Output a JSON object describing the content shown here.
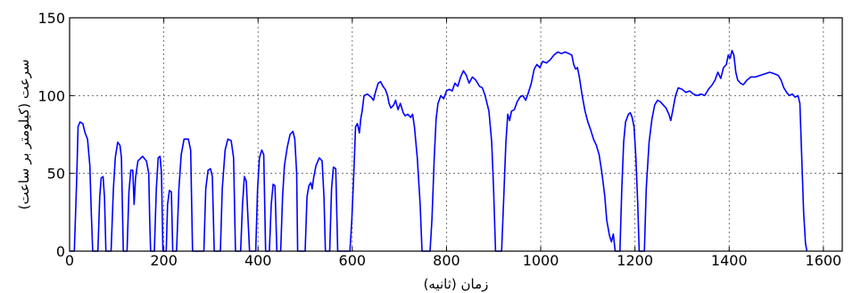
{
  "chart_data": {
    "type": "line",
    "title": "",
    "xlabel": "زمان (ثانیه)",
    "ylabel": "سرعت (کیلومتر بر ساعت)",
    "xlim": [
      0,
      1640
    ],
    "ylim": [
      0,
      150
    ],
    "xticks": [
      0,
      200,
      400,
      600,
      800,
      1000,
      1200,
      1400,
      1600
    ],
    "yticks": [
      0,
      50,
      100,
      150
    ],
    "grid": true,
    "grid_style": "dotted",
    "legend": "none",
    "series": [
      {
        "color": "#0000ff",
        "points": [
          [
            0,
            0
          ],
          [
            10,
            0
          ],
          [
            15,
            45
          ],
          [
            18,
            80
          ],
          [
            22,
            83
          ],
          [
            28,
            82
          ],
          [
            33,
            76
          ],
          [
            38,
            72
          ],
          [
            43,
            55
          ],
          [
            46,
            25
          ],
          [
            49,
            0
          ],
          [
            60,
            0
          ],
          [
            64,
            35
          ],
          [
            67,
            47
          ],
          [
            71,
            48
          ],
          [
            74,
            35
          ],
          [
            77,
            0
          ],
          [
            88,
            0
          ],
          [
            93,
            40
          ],
          [
            97,
            60
          ],
          [
            102,
            70
          ],
          [
            107,
            68
          ],
          [
            110,
            60
          ],
          [
            114,
            0
          ],
          [
            122,
            0
          ],
          [
            126,
            38
          ],
          [
            130,
            52
          ],
          [
            134,
            52
          ],
          [
            137,
            30
          ],
          [
            140,
            47
          ],
          [
            145,
            58
          ],
          [
            155,
            61
          ],
          [
            163,
            58
          ],
          [
            168,
            50
          ],
          [
            170,
            20
          ],
          [
            172,
            0
          ],
          [
            180,
            0
          ],
          [
            184,
            40
          ],
          [
            188,
            60
          ],
          [
            192,
            61
          ],
          [
            195,
            50
          ],
          [
            198,
            0
          ],
          [
            205,
            0
          ],
          [
            208,
            30
          ],
          [
            212,
            39
          ],
          [
            216,
            38
          ],
          [
            219,
            0
          ],
          [
            227,
            0
          ],
          [
            232,
            40
          ],
          [
            237,
            62
          ],
          [
            243,
            72
          ],
          [
            252,
            72
          ],
          [
            257,
            65
          ],
          [
            261,
            0
          ],
          [
            285,
            0
          ],
          [
            289,
            40
          ],
          [
            294,
            52
          ],
          [
            299,
            53
          ],
          [
            303,
            48
          ],
          [
            307,
            0
          ],
          [
            320,
            0
          ],
          [
            324,
            40
          ],
          [
            330,
            65
          ],
          [
            336,
            72
          ],
          [
            343,
            71
          ],
          [
            348,
            60
          ],
          [
            352,
            0
          ],
          [
            363,
            0
          ],
          [
            367,
            30
          ],
          [
            371,
            48
          ],
          [
            375,
            45
          ],
          [
            378,
            25
          ],
          [
            382,
            0
          ],
          [
            395,
            0
          ],
          [
            399,
            40
          ],
          [
            403,
            60
          ],
          [
            408,
            65
          ],
          [
            412,
            62
          ],
          [
            416,
            0
          ],
          [
            424,
            0
          ],
          [
            428,
            30
          ],
          [
            432,
            43
          ],
          [
            436,
            42
          ],
          [
            440,
            0
          ],
          [
            448,
            0
          ],
          [
            452,
            35
          ],
          [
            456,
            55
          ],
          [
            462,
            67
          ],
          [
            468,
            75
          ],
          [
            474,
            77
          ],
          [
            478,
            72
          ],
          [
            482,
            50
          ],
          [
            484,
            0
          ],
          [
            500,
            0
          ],
          [
            504,
            35
          ],
          [
            508,
            42
          ],
          [
            512,
            44
          ],
          [
            515,
            40
          ],
          [
            518,
            47
          ],
          [
            523,
            55
          ],
          [
            530,
            60
          ],
          [
            536,
            58
          ],
          [
            540,
            35
          ],
          [
            543,
            0
          ],
          [
            552,
            0
          ],
          [
            556,
            40
          ],
          [
            560,
            54
          ],
          [
            565,
            53
          ],
          [
            569,
            0
          ],
          [
            595,
            0
          ],
          [
            599,
            20
          ],
          [
            604,
            55
          ],
          [
            607,
            80
          ],
          [
            611,
            82
          ],
          [
            615,
            76
          ],
          [
            618,
            85
          ],
          [
            621,
            90
          ],
          [
            625,
            100
          ],
          [
            632,
            101
          ],
          [
            640,
            99
          ],
          [
            645,
            97
          ],
          [
            650,
            103
          ],
          [
            655,
            108
          ],
          [
            660,
            109
          ],
          [
            665,
            106
          ],
          [
            670,
            104
          ],
          [
            675,
            100
          ],
          [
            678,
            95
          ],
          [
            682,
            92
          ],
          [
            688,
            94
          ],
          [
            692,
            97
          ],
          [
            697,
            91
          ],
          [
            702,
            95
          ],
          [
            708,
            89
          ],
          [
            712,
            87
          ],
          [
            718,
            88
          ],
          [
            724,
            86
          ],
          [
            728,
            88
          ],
          [
            732,
            80
          ],
          [
            738,
            60
          ],
          [
            744,
            30
          ],
          [
            748,
            0
          ],
          [
            765,
            0
          ],
          [
            769,
            20
          ],
          [
            774,
            60
          ],
          [
            778,
            85
          ],
          [
            782,
            95
          ],
          [
            788,
            100
          ],
          [
            794,
            98
          ],
          [
            800,
            103
          ],
          [
            806,
            104
          ],
          [
            812,
            103
          ],
          [
            818,
            108
          ],
          [
            824,
            106
          ],
          [
            830,
            112
          ],
          [
            836,
            116
          ],
          [
            842,
            113
          ],
          [
            848,
            108
          ],
          [
            855,
            112
          ],
          [
            862,
            110
          ],
          [
            870,
            106
          ],
          [
            876,
            105
          ],
          [
            882,
            100
          ],
          [
            890,
            90
          ],
          [
            896,
            70
          ],
          [
            900,
            40
          ],
          [
            904,
            0
          ],
          [
            917,
            0
          ],
          [
            921,
            30
          ],
          [
            926,
            70
          ],
          [
            930,
            88
          ],
          [
            934,
            84
          ],
          [
            938,
            90
          ],
          [
            944,
            91
          ],
          [
            950,
            96
          ],
          [
            956,
            99
          ],
          [
            962,
            100
          ],
          [
            968,
            97
          ],
          [
            974,
            102
          ],
          [
            980,
            108
          ],
          [
            986,
            117
          ],
          [
            992,
            120
          ],
          [
            998,
            118
          ],
          [
            1004,
            122
          ],
          [
            1012,
            121
          ],
          [
            1020,
            123
          ],
          [
            1028,
            126
          ],
          [
            1036,
            128
          ],
          [
            1044,
            127
          ],
          [
            1052,
            128
          ],
          [
            1060,
            127
          ],
          [
            1066,
            126
          ],
          [
            1070,
            120
          ],
          [
            1074,
            117
          ],
          [
            1078,
            118
          ],
          [
            1082,
            112
          ],
          [
            1088,
            100
          ],
          [
            1094,
            90
          ],
          [
            1100,
            83
          ],
          [
            1106,
            78
          ],
          [
            1112,
            72
          ],
          [
            1118,
            68
          ],
          [
            1124,
            62
          ],
          [
            1130,
            50
          ],
          [
            1136,
            35
          ],
          [
            1140,
            20
          ],
          [
            1146,
            10
          ],
          [
            1150,
            6
          ],
          [
            1154,
            11
          ],
          [
            1158,
            0
          ],
          [
            1168,
            0
          ],
          [
            1172,
            40
          ],
          [
            1176,
            70
          ],
          [
            1180,
            83
          ],
          [
            1186,
            88
          ],
          [
            1190,
            89
          ],
          [
            1194,
            86
          ],
          [
            1198,
            80
          ],
          [
            1202,
            60
          ],
          [
            1206,
            30
          ],
          [
            1209,
            0
          ],
          [
            1220,
            0
          ],
          [
            1224,
            40
          ],
          [
            1230,
            70
          ],
          [
            1236,
            85
          ],
          [
            1242,
            94
          ],
          [
            1248,
            97
          ],
          [
            1254,
            96
          ],
          [
            1260,
            94
          ],
          [
            1266,
            92
          ],
          [
            1272,
            88
          ],
          [
            1276,
            84
          ],
          [
            1280,
            90
          ],
          [
            1286,
            100
          ],
          [
            1292,
            105
          ],
          [
            1300,
            104
          ],
          [
            1308,
            102
          ],
          [
            1316,
            103
          ],
          [
            1324,
            101
          ],
          [
            1332,
            100
          ],
          [
            1340,
            101
          ],
          [
            1348,
            100
          ],
          [
            1356,
            104
          ],
          [
            1364,
            107
          ],
          [
            1370,
            110
          ],
          [
            1376,
            115
          ],
          [
            1382,
            111
          ],
          [
            1388,
            118
          ],
          [
            1394,
            120
          ],
          [
            1398,
            126
          ],
          [
            1402,
            124
          ],
          [
            1406,
            129
          ],
          [
            1410,
            126
          ],
          [
            1414,
            115
          ],
          [
            1418,
            110
          ],
          [
            1424,
            108
          ],
          [
            1430,
            107
          ],
          [
            1438,
            110
          ],
          [
            1446,
            112
          ],
          [
            1456,
            112
          ],
          [
            1466,
            113
          ],
          [
            1476,
            114
          ],
          [
            1486,
            115
          ],
          [
            1496,
            114
          ],
          [
            1504,
            113
          ],
          [
            1510,
            110
          ],
          [
            1516,
            105
          ],
          [
            1522,
            102
          ],
          [
            1528,
            100
          ],
          [
            1534,
            101
          ],
          [
            1540,
            99
          ],
          [
            1546,
            100
          ],
          [
            1550,
            95
          ],
          [
            1554,
            60
          ],
          [
            1558,
            25
          ],
          [
            1562,
            5
          ],
          [
            1565,
            0
          ]
        ]
      }
    ]
  }
}
